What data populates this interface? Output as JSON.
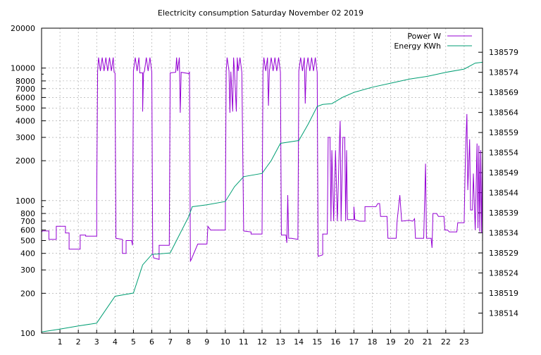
{
  "chart_data": {
    "type": "line",
    "title": "Electricity consumption Saturday November 02 2019",
    "xlabel": "",
    "ylabel": "",
    "xlim": [
      0,
      24
    ],
    "x_ticks": [
      1,
      2,
      3,
      4,
      5,
      6,
      7,
      8,
      9,
      10,
      11,
      12,
      13,
      14,
      15,
      16,
      17,
      18,
      19,
      20,
      21,
      22,
      23
    ],
    "y_left": {
      "label": "",
      "scale": "log",
      "lim": [
        100,
        20000
      ],
      "ticks": [
        100,
        200,
        300,
        400,
        500,
        600,
        700,
        800,
        1000,
        2000,
        3000,
        4000,
        5000,
        6000,
        7000,
        8000,
        10000,
        20000
      ]
    },
    "y_right": {
      "label": "",
      "scale": "linear",
      "lim": [
        138509,
        138585
      ],
      "ticks": [
        138514,
        138519,
        138524,
        138529,
        138534,
        138539,
        138544,
        138549,
        138554,
        138559,
        138564,
        138569,
        138574,
        138579
      ]
    },
    "grid": true,
    "legend": {
      "position": "top-right",
      "entries": [
        "Power W",
        "Energy KWh"
      ]
    },
    "series": [
      {
        "name": "Power W",
        "axis": "left",
        "color": "#9400d3",
        "points": [
          [
            0,
            580
          ],
          [
            0.05,
            590
          ],
          [
            0.4,
            590
          ],
          [
            0.4,
            510
          ],
          [
            0.8,
            510
          ],
          [
            0.8,
            640
          ],
          [
            1.3,
            640
          ],
          [
            1.3,
            570
          ],
          [
            1.5,
            570
          ],
          [
            1.5,
            430
          ],
          [
            2.1,
            430
          ],
          [
            2.1,
            550
          ],
          [
            2.4,
            550
          ],
          [
            2.4,
            540
          ],
          [
            3.0,
            540
          ],
          [
            3.0,
            1100
          ],
          [
            3.05,
            9500
          ],
          [
            3.1,
            12000
          ],
          [
            3.2,
            9500
          ],
          [
            3.3,
            12000
          ],
          [
            3.4,
            9500
          ],
          [
            3.5,
            12000
          ],
          [
            3.6,
            9500
          ],
          [
            3.7,
            12000
          ],
          [
            3.8,
            9500
          ],
          [
            3.9,
            12000
          ],
          [
            3.95,
            9300
          ],
          [
            4.0,
            9200
          ],
          [
            4.05,
            520
          ],
          [
            4.4,
            510
          ],
          [
            4.4,
            400
          ],
          [
            4.6,
            400
          ],
          [
            4.6,
            500
          ],
          [
            4.9,
            500
          ],
          [
            4.95,
            460
          ],
          [
            5.0,
            9500
          ],
          [
            5.1,
            12000
          ],
          [
            5.2,
            9500
          ],
          [
            5.3,
            12000
          ],
          [
            5.35,
            9200
          ],
          [
            5.5,
            9200
          ],
          [
            5.5,
            4700
          ],
          [
            5.55,
            9200
          ],
          [
            5.6,
            9500
          ],
          [
            5.7,
            12000
          ],
          [
            5.8,
            9500
          ],
          [
            5.9,
            12000
          ],
          [
            6.0,
            9300
          ],
          [
            6.05,
            400
          ],
          [
            6.1,
            370
          ],
          [
            6.4,
            360
          ],
          [
            6.4,
            460
          ],
          [
            6.95,
            460
          ],
          [
            7.0,
            9200
          ],
          [
            7.3,
            9300
          ],
          [
            7.35,
            12000
          ],
          [
            7.4,
            9500
          ],
          [
            7.5,
            12000
          ],
          [
            7.55,
            4600
          ],
          [
            7.6,
            9300
          ],
          [
            8.0,
            9100
          ],
          [
            8.05,
            9300
          ],
          [
            8.1,
            350
          ],
          [
            8.15,
            360
          ],
          [
            8.5,
            470
          ],
          [
            9.0,
            470
          ],
          [
            9.05,
            640
          ],
          [
            9.2,
            600
          ],
          [
            10.0,
            600
          ],
          [
            10.05,
            9500
          ],
          [
            10.1,
            12000
          ],
          [
            10.2,
            9500
          ],
          [
            10.25,
            4600
          ],
          [
            10.3,
            9400
          ],
          [
            10.4,
            4700
          ],
          [
            10.45,
            12000
          ],
          [
            10.5,
            9500
          ],
          [
            10.6,
            4700
          ],
          [
            10.65,
            12000
          ],
          [
            10.7,
            9500
          ],
          [
            10.8,
            12000
          ],
          [
            10.9,
            9300
          ],
          [
            11.0,
            590
          ],
          [
            11.4,
            580
          ],
          [
            11.4,
            560
          ],
          [
            12.0,
            560
          ],
          [
            12.05,
            9500
          ],
          [
            12.1,
            12000
          ],
          [
            12.2,
            9500
          ],
          [
            12.3,
            12000
          ],
          [
            12.35,
            5200
          ],
          [
            12.4,
            9500
          ],
          [
            12.5,
            12000
          ],
          [
            12.6,
            9500
          ],
          [
            12.7,
            12000
          ],
          [
            12.8,
            9500
          ],
          [
            12.9,
            12000
          ],
          [
            13.0,
            9300
          ],
          [
            13.05,
            550
          ],
          [
            13.3,
            550
          ],
          [
            13.35,
            480
          ],
          [
            13.4,
            1100
          ],
          [
            13.45,
            520
          ],
          [
            13.6,
            520
          ],
          [
            13.95,
            510
          ],
          [
            14.0,
            9500
          ],
          [
            14.1,
            12000
          ],
          [
            14.2,
            9500
          ],
          [
            14.3,
            12000
          ],
          [
            14.35,
            5400
          ],
          [
            14.4,
            9500
          ],
          [
            14.5,
            12000
          ],
          [
            14.6,
            9500
          ],
          [
            14.7,
            12000
          ],
          [
            14.8,
            9500
          ],
          [
            14.9,
            12000
          ],
          [
            15.0,
            9300
          ],
          [
            15.05,
            380
          ],
          [
            15.3,
            390
          ],
          [
            15.3,
            560
          ],
          [
            15.55,
            560
          ],
          [
            15.6,
            3000
          ],
          [
            15.7,
            3000
          ],
          [
            15.75,
            700
          ],
          [
            15.8,
            2400
          ],
          [
            15.9,
            700
          ],
          [
            16.0,
            2400
          ],
          [
            16.1,
            700
          ],
          [
            16.2,
            2400
          ],
          [
            16.25,
            4000
          ],
          [
            16.3,
            700
          ],
          [
            16.4,
            3000
          ],
          [
            16.5,
            3000
          ],
          [
            16.55,
            700
          ],
          [
            16.6,
            2400
          ],
          [
            16.65,
            720
          ],
          [
            17.0,
            720
          ],
          [
            17.0,
            900
          ],
          [
            17.05,
            720
          ],
          [
            17.3,
            700
          ],
          [
            17.3,
            700
          ],
          [
            17.6,
            700
          ],
          [
            17.6,
            900
          ],
          [
            18.0,
            900
          ],
          [
            18.2,
            900
          ],
          [
            18.3,
            950
          ],
          [
            18.4,
            950
          ],
          [
            18.45,
            760
          ],
          [
            18.8,
            760
          ],
          [
            18.85,
            520
          ],
          [
            19.3,
            520
          ],
          [
            19.35,
            700
          ],
          [
            19.5,
            1100
          ],
          [
            19.6,
            700
          ],
          [
            20.0,
            710
          ],
          [
            20.2,
            700
          ],
          [
            20.3,
            730
          ],
          [
            20.35,
            520
          ],
          [
            20.6,
            520
          ],
          [
            20.8,
            520
          ],
          [
            20.9,
            1900
          ],
          [
            20.95,
            520
          ],
          [
            21.0,
            520
          ],
          [
            21.2,
            520
          ],
          [
            21.25,
            440
          ],
          [
            21.3,
            800
          ],
          [
            21.5,
            800
          ],
          [
            21.6,
            760
          ],
          [
            21.9,
            760
          ],
          [
            21.95,
            600
          ],
          [
            22.1,
            600
          ],
          [
            22.2,
            580
          ],
          [
            22.6,
            580
          ],
          [
            22.65,
            680
          ],
          [
            23.0,
            680
          ],
          [
            23.05,
            1600
          ],
          [
            23.1,
            2900
          ],
          [
            23.15,
            4500
          ],
          [
            23.2,
            1200
          ],
          [
            23.3,
            2900
          ],
          [
            23.35,
            850
          ],
          [
            23.45,
            850
          ],
          [
            23.5,
            1600
          ],
          [
            23.6,
            600
          ],
          [
            23.7,
            2700
          ],
          [
            23.75,
            620
          ],
          [
            23.8,
            2600
          ],
          [
            23.85,
            580
          ],
          [
            23.9,
            2400
          ],
          [
            23.95,
            570
          ],
          [
            24.0,
            2400
          ]
        ]
      },
      {
        "name": "Energy KWh",
        "axis": "right",
        "color": "#009e73",
        "points": [
          [
            0,
            138509.3
          ],
          [
            1,
            138510.0
          ],
          [
            2,
            138510.8
          ],
          [
            3,
            138511.5
          ],
          [
            3.1,
            138512.2
          ],
          [
            4.0,
            138518.2
          ],
          [
            5.0,
            138519.0
          ],
          [
            5.5,
            138526.0
          ],
          [
            6.0,
            138528.6
          ],
          [
            7.0,
            138529.0
          ],
          [
            8.0,
            138538.0
          ],
          [
            8.2,
            138540.5
          ],
          [
            9.0,
            138541.0
          ],
          [
            10.0,
            138541.8
          ],
          [
            10.5,
            138545.5
          ],
          [
            11.0,
            138548.0
          ],
          [
            12.0,
            138548.8
          ],
          [
            12.5,
            138552.0
          ],
          [
            13.0,
            138556.3
          ],
          [
            14.0,
            138557.0
          ],
          [
            14.5,
            138561.0
          ],
          [
            15.0,
            138565.5
          ],
          [
            15.3,
            138566.0
          ],
          [
            15.8,
            138566.2
          ],
          [
            16.4,
            138567.8
          ],
          [
            17.0,
            138569.0
          ],
          [
            18.0,
            138570.3
          ],
          [
            19.0,
            138571.3
          ],
          [
            20.0,
            138572.3
          ],
          [
            21.0,
            138573.0
          ],
          [
            22.0,
            138574.0
          ],
          [
            23.0,
            138574.8
          ],
          [
            23.6,
            138576.3
          ],
          [
            24.0,
            138576.5
          ]
        ]
      }
    ]
  }
}
